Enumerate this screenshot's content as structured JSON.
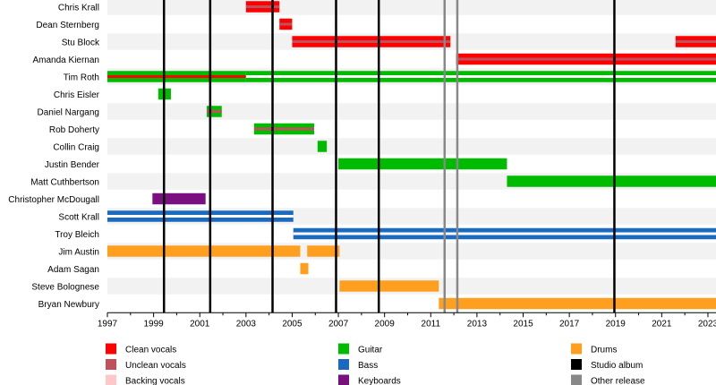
{
  "chart_data": {
    "type": "timeline",
    "x_range": [
      1997,
      2023.35
    ],
    "x_ticks": [
      "1997",
      "1999",
      "2001",
      "2003",
      "2005",
      "2007",
      "2009",
      "2011",
      "2013",
      "2015",
      "2017",
      "2019",
      "2021",
      "2023"
    ],
    "members": [
      {
        "name": "Chris Krall",
        "periods": [
          {
            "start": 2003.0,
            "end": 2004.45,
            "role": "Clean vocals",
            "secondary": "Unclean vocals"
          }
        ]
      },
      {
        "name": "Dean Sternberg",
        "periods": [
          {
            "start": 2004.45,
            "end": 2005.0,
            "role": "Clean vocals",
            "secondary": "Unclean vocals"
          }
        ]
      },
      {
        "name": "Stu Block",
        "periods": [
          {
            "start": 2005.0,
            "end": 2011.85,
            "role": "Clean vocals",
            "secondary": "Unclean vocals"
          },
          {
            "start": 2021.6,
            "end": 2023.35,
            "role": "Clean vocals",
            "secondary": "Unclean vocals"
          }
        ]
      },
      {
        "name": "Amanda Kiernan",
        "periods": [
          {
            "start": 2012.1,
            "end": 2023.35,
            "role": "Clean vocals",
            "secondary": "Unclean vocals"
          }
        ]
      },
      {
        "name": "Tim Roth",
        "periods": [
          {
            "start": 1997.0,
            "end": 2003.0,
            "role": "Guitar",
            "secondary": "Clean vocals"
          },
          {
            "start": 2003.0,
            "end": 2023.35,
            "role": "Guitar"
          }
        ]
      },
      {
        "name": "Chris Eisler",
        "periods": [
          {
            "start": 1999.2,
            "end": 1999.75,
            "role": "Guitar"
          }
        ]
      },
      {
        "name": "Daniel Nargang",
        "periods": [
          {
            "start": 2001.3,
            "end": 2001.95,
            "role": "Guitar",
            "secondary": "Unclean vocals"
          }
        ]
      },
      {
        "name": "Rob Doherty",
        "periods": [
          {
            "start": 2003.35,
            "end": 2005.95,
            "role": "Guitar",
            "secondary": "Unclean vocals"
          }
        ]
      },
      {
        "name": "Collin Craig",
        "periods": [
          {
            "start": 2006.1,
            "end": 2006.5,
            "role": "Guitar"
          }
        ]
      },
      {
        "name": "Justin Bender",
        "periods": [
          {
            "start": 2007.0,
            "end": 2014.3,
            "role": "Guitar"
          }
        ]
      },
      {
        "name": "Matt Cuthbertson",
        "periods": [
          {
            "start": 2014.3,
            "end": 2023.35,
            "role": "Guitar"
          }
        ]
      },
      {
        "name": "Christopher McDougall",
        "periods": [
          {
            "start": 1998.95,
            "end": 2001.25,
            "role": "Keyboards"
          }
        ]
      },
      {
        "name": "Scott Krall",
        "periods": [
          {
            "start": 1997.0,
            "end": 2005.05,
            "role": "Bass"
          }
        ]
      },
      {
        "name": "Troy Bleich",
        "periods": [
          {
            "start": 2005.05,
            "end": 2023.35,
            "role": "Bass"
          }
        ]
      },
      {
        "name": "Jim Austin",
        "periods": [
          {
            "start": 1997.0,
            "end": 2005.35,
            "role": "Drums"
          },
          {
            "start": 2005.65,
            "end": 2007.05,
            "role": "Drums"
          }
        ]
      },
      {
        "name": "Adam Sagan",
        "periods": [
          {
            "start": 2005.35,
            "end": 2005.7,
            "role": "Drums"
          }
        ]
      },
      {
        "name": "Steve Bolognese",
        "periods": [
          {
            "start": 2007.05,
            "end": 2011.35,
            "role": "Drums"
          }
        ]
      },
      {
        "name": "Bryan Newbury",
        "periods": [
          {
            "start": 2011.35,
            "end": 2023.35,
            "role": "Drums"
          }
        ]
      }
    ],
    "studio_albums": [
      1999.45,
      2001.45,
      2004.15,
      2006.9,
      2008.75,
      2018.95
    ],
    "other_releases": [
      2011.6,
      2012.15
    ],
    "legend": [
      {
        "label": "Clean vocals",
        "color": "#ff0000"
      },
      {
        "label": "Unclean vocals",
        "color": "#c0505a"
      },
      {
        "label": "Backing vocals",
        "color": "#ffc8c8"
      },
      {
        "label": "Guitar",
        "color": "#00bb00"
      },
      {
        "label": "Bass",
        "color": "#1a6ac0"
      },
      {
        "label": "Keyboards",
        "color": "#7a1080"
      },
      {
        "label": "Drums",
        "color": "#ff9f20"
      },
      {
        "label": "Studio album",
        "color": "#000000"
      },
      {
        "label": "Other release",
        "color": "#888888"
      }
    ]
  }
}
